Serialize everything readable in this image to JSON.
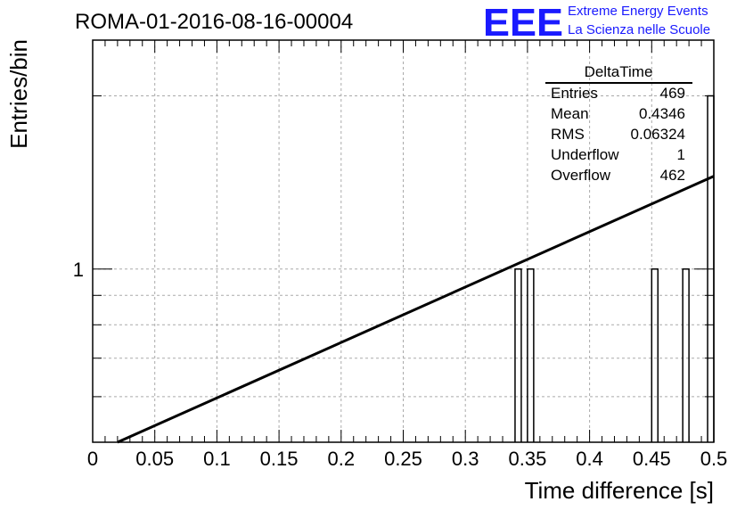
{
  "run_title": "ROMA-01-2016-08-16-00004",
  "logo": {
    "mark": "EEE",
    "line1": "Extreme Energy Events",
    "line2": "La Scienza nelle Scuole",
    "color": "#1a1aff"
  },
  "stats_box": {
    "title": "DeltaTime",
    "rows": [
      {
        "label": "Entries",
        "value": "469"
      },
      {
        "label": "Mean",
        "value": "0.4346"
      },
      {
        "label": "RMS",
        "value": "0.06324"
      },
      {
        "label": "Underflow",
        "value": "1"
      },
      {
        "label": "Overflow",
        "value": "462"
      }
    ]
  },
  "chart_data": {
    "type": "bar",
    "xlabel": "Time difference [s]",
    "ylabel": "Entries/bin",
    "xlim": [
      0,
      0.5
    ],
    "ylim": [
      0.5,
      2.5
    ],
    "log_y": true,
    "grid": true,
    "x_ticks": [
      "0",
      "0.05",
      "0.1",
      "0.15",
      "0.2",
      "0.25",
      "0.3",
      "0.35",
      "0.4",
      "0.45",
      "0.5"
    ],
    "y_tick_labels": [
      {
        "value": 1,
        "label": "1"
      }
    ],
    "bin_width": 0.005,
    "bins": [
      {
        "x": 0.34,
        "count": 1
      },
      {
        "x": 0.35,
        "count": 1
      },
      {
        "x": 0.45,
        "count": 1
      },
      {
        "x": 0.475,
        "count": 1
      },
      {
        "x": 0.495,
        "count": 2
      }
    ],
    "fit_line": {
      "x": [
        0.02,
        0.5
      ],
      "y": [
        0.5,
        1.45
      ]
    },
    "line_color": "#000000"
  }
}
